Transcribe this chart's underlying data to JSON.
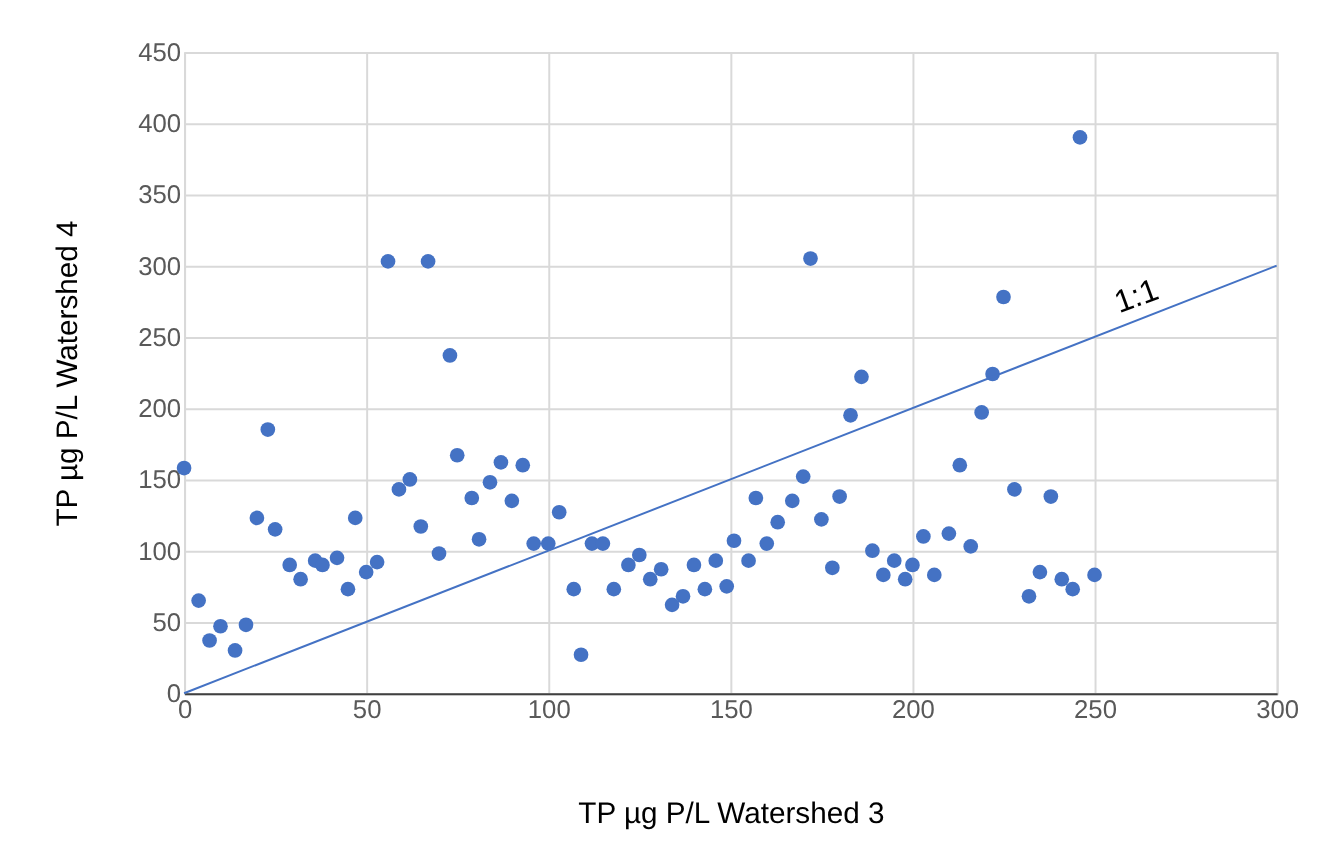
{
  "chart_data": {
    "type": "scatter",
    "xlabel": "TP µg P/L Watershed 3",
    "ylabel": "TP µg P/L  Watershed 4",
    "xlim": [
      0,
      300
    ],
    "xticks": [
      0,
      50,
      100,
      150,
      200,
      250,
      300
    ],
    "ylim": [
      0,
      450
    ],
    "yticks": [
      0,
      50,
      100,
      150,
      200,
      250,
      300,
      350,
      400,
      450
    ],
    "grid": true,
    "marker": "circle",
    "annotations": [
      {
        "text": "1:1",
        "x": 263,
        "y": 268
      }
    ],
    "series": [
      {
        "color": "#4472c4",
        "x": [
          0,
          4,
          7,
          10,
          14,
          17,
          20,
          23,
          25,
          29,
          32,
          36,
          38,
          42,
          45,
          47,
          50,
          53,
          56,
          59,
          62,
          65,
          67,
          70,
          73,
          75,
          79,
          81,
          84,
          87,
          90,
          93,
          96,
          100,
          103,
          107,
          109,
          112,
          115,
          118,
          122,
          125,
          128,
          131,
          134,
          137,
          140,
          143,
          146,
          149,
          151,
          155,
          157,
          160,
          163,
          167,
          170,
          172,
          175,
          178,
          180,
          183,
          186,
          189,
          192,
          195,
          198,
          200,
          203,
          206,
          210,
          213,
          216,
          219,
          222,
          225,
          228,
          232,
          235,
          238,
          241,
          244,
          246,
          250
        ],
        "values": [
          158,
          65,
          37,
          47,
          30,
          48,
          123,
          185,
          115,
          90,
          80,
          93,
          90,
          95,
          73,
          123,
          85,
          92,
          303,
          143,
          150,
          117,
          303,
          98,
          237,
          167,
          137,
          108,
          148,
          162,
          135,
          160,
          105,
          105,
          127,
          73,
          27,
          105,
          105,
          73,
          90,
          97,
          80,
          87,
          62,
          68,
          90,
          73,
          93,
          75,
          107,
          93,
          137,
          105,
          120,
          135,
          152,
          305,
          122,
          88,
          138,
          195,
          222,
          100,
          83,
          93,
          80,
          90,
          110,
          83,
          112,
          160,
          103,
          197,
          224,
          278,
          143,
          68,
          85,
          138,
          80,
          73,
          390,
          83
        ]
      },
      {
        "type": "line",
        "marker": "none",
        "color": "#4472c4",
        "x": [
          0,
          300
        ],
        "values": [
          0,
          300
        ]
      }
    ]
  }
}
